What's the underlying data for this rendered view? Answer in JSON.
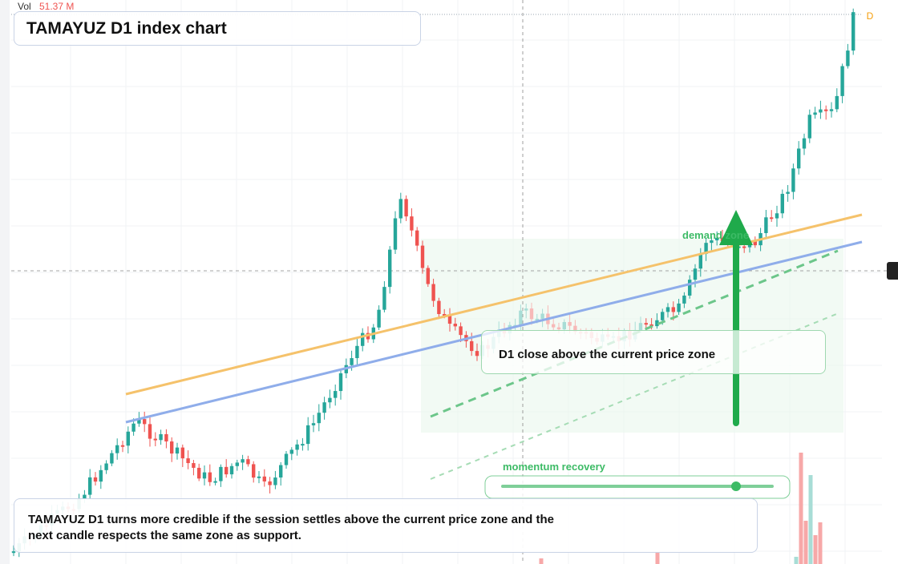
{
  "header": {
    "vol_label": "Vol",
    "vol_value": "51.37 M",
    "title": "TAMAYUZ D1 index chart"
  },
  "annotations": {
    "zone_label": "demand zone",
    "callout": "D1 close above the current price zone",
    "slider_label": "momentum recovery",
    "marker": "D"
  },
  "caption": "TAMAYUZ D1 turns more credible if the session settles above the current price zone and the next candle respects the same zone as support."
}
